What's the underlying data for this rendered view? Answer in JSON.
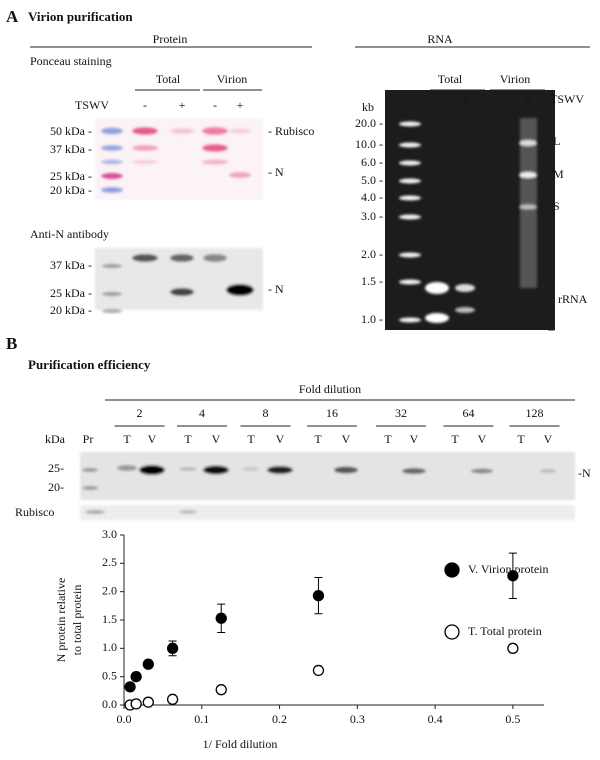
{
  "panel_a": {
    "label": "A",
    "title": "Virion purification",
    "protein_header": "Protein",
    "rna_header": "RNA",
    "ponceau": {
      "title": "Ponceau staining",
      "groups": [
        "Total",
        "Virion"
      ],
      "treatment": "TSWV",
      "lanes": [
        "-",
        "+"
      ],
      "markers": [
        "50 kDa -",
        "37 kDa -",
        "25 kDa -",
        "20 kDa -"
      ],
      "bands": [
        "- Rubisco",
        "- N"
      ]
    },
    "western": {
      "title": "Anti-N antibody",
      "markers": [
        "37 kDa -",
        "25 kDa -",
        "20 kDa -"
      ],
      "band": "- N"
    },
    "rna_gel": {
      "groups": [
        "Total",
        "Virion"
      ],
      "unit": "kb",
      "lanes": [
        "-",
        "+"
      ],
      "treatment": "TSWV",
      "markers": [
        "20.0 -",
        "10.0 -",
        "6.0 -",
        "5.0 -",
        "4.0 -",
        "3.0 -",
        "2.0 -",
        "1.5 -",
        "1.0 -"
      ],
      "segments": [
        "L",
        "M",
        "S"
      ],
      "rrna": "rRNA"
    }
  },
  "panel_b": {
    "label": "B",
    "title": "Purification efficiency",
    "dilution_header": "Fold dilution",
    "dilutions": [
      "2",
      "4",
      "8",
      "16",
      "32",
      "64",
      "128"
    ],
    "lanes": [
      "T",
      "V"
    ],
    "unit": "kDa",
    "marker_lane": "Pr",
    "markers": [
      "25-",
      "20-"
    ],
    "band": "-N",
    "loading": "Rubisco"
  },
  "chart_data": {
    "type": "scatter",
    "x_label": "1/ Fold dilution",
    "y_label": [
      "N protein relative",
      "to total protein"
    ],
    "x": [
      0.0078125,
      0.015625,
      0.03125,
      0.0625,
      0.125,
      0.25,
      0.5
    ],
    "series": [
      {
        "name": "V. Virion protein",
        "color": "#000000",
        "values": [
          0.32,
          0.5,
          0.72,
          1.0,
          1.53,
          1.93,
          2.28
        ],
        "errors": [
          0.06,
          0.06,
          0.05,
          0.13,
          0.25,
          0.32,
          0.4
        ]
      },
      {
        "name": "T. Total protein",
        "color": "#ffffff",
        "values": [
          0.0,
          0.02,
          0.05,
          0.1,
          0.27,
          0.61,
          1.0
        ],
        "errors": [
          0.02,
          0.02,
          0.03,
          0.04,
          0.04,
          0.05,
          0.03
        ]
      }
    ],
    "xlim": [
      0,
      0.54
    ],
    "ylim": [
      0,
      3
    ],
    "xticks": [
      {
        "value": 0,
        "label": "0.0"
      },
      0.1,
      0.2,
      0.3,
      0.4,
      0.5
    ],
    "yticks": [
      {
        "value": 0,
        "label": "0.0"
      },
      0.5,
      {
        "value": 1,
        "label": "1.0"
      },
      1.5,
      {
        "value": 2,
        "label": "2.0"
      },
      2.5,
      {
        "value": 3,
        "label": "3.0"
      }
    ],
    "grid": false
  }
}
